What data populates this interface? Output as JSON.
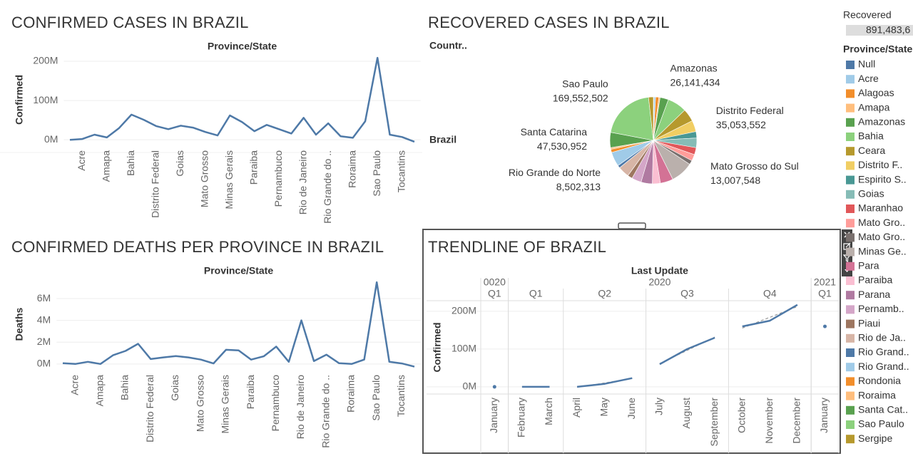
{
  "chart_data": [
    {
      "type": "line",
      "title": "CONFIRMED CASES IN BRAZIL",
      "x_label": "Province/State",
      "y_label": "Confirmed",
      "categories": [
        null,
        "Acre",
        null,
        "Amapa",
        null,
        "Bahia",
        null,
        "Distrito Federal",
        null,
        "Goias",
        null,
        "Mato Grosso",
        null,
        "Minas Gerais",
        null,
        "Paraiba",
        null,
        "Pernambuco",
        null,
        "Rio de Janeiro",
        null,
        "Rio Grande do ..",
        null,
        "Roraima",
        null,
        "Sao Paulo",
        null,
        "Tocantins",
        null
      ],
      "values": [
        0,
        2000000,
        13000000,
        6000000,
        30000000,
        64000000,
        51000000,
        35000000,
        27000000,
        36000000,
        31000000,
        20000000,
        11000000,
        62000000,
        45000000,
        22000000,
        38000000,
        27000000,
        16000000,
        56000000,
        13000000,
        42000000,
        9000000,
        5000000,
        47000000,
        209000000,
        13000000,
        7000000,
        -5000000
      ],
      "color": "#4e79a7",
      "ylim": [
        -16000000,
        220000000
      ],
      "yticks": [
        {
          "value": 0,
          "label": "0M"
        },
        {
          "value": 100000000,
          "label": "100M"
        },
        {
          "value": 200000000,
          "label": "200M"
        }
      ],
      "grid": true
    },
    {
      "type": "pie",
      "title": "RECOVERED CASES IN BRAZIL",
      "column_header": "Countr..",
      "row_label": "Brazil",
      "legend_title": "Province/State",
      "categories": [
        "Null",
        "Acre",
        "Alagoas",
        "Amapa",
        "Amazonas",
        "Bahia",
        "Ceara",
        "Distrito F..",
        "Espirito S..",
        "Goias",
        "Maranhao",
        "Mato Gro..",
        "Mato Gro..",
        "Minas Ge..",
        "Para",
        "Paraiba",
        "Parana",
        "Pernamb..",
        "Piaui",
        "Rio de Ja..",
        "Rio Grand..",
        "Rio Grand..",
        "Rondonia",
        "Roraima",
        "Santa Cat..",
        "Sao Paulo",
        "Sergipe"
      ],
      "colors": [
        "#4e79a7",
        "#a0cbe8",
        "#f28e2b",
        "#ffbe7d",
        "#59a14f",
        "#8cd17d",
        "#b6992d",
        "#f1ce63",
        "#499894",
        "#86bcb6",
        "#e15759",
        "#ff9d9a",
        "#79706e",
        "#bab0ac",
        "#d37295",
        "#fabfd2",
        "#b07aa1",
        "#d4a6c8",
        "#9d7660",
        "#d7b5a6",
        "#4e79a7",
        "#a0cbe8",
        "#f28e2b",
        "#ffbe7d",
        "#59a14f",
        "#8cd17d",
        "#b6992d"
      ],
      "values": [
        2000000,
        5000000,
        10000000,
        4000000,
        26141434,
        60000000,
        40000000,
        35053552,
        20000000,
        30000000,
        22000000,
        20000000,
        13007548,
        70000000,
        40000000,
        25000000,
        35000000,
        30000000,
        15000000,
        35000000,
        8502313,
        45000000,
        10000000,
        5000000,
        47530952,
        169552502,
        15000000
      ],
      "labels": [
        null,
        null,
        null,
        null,
        {
          "name": "Amazonas",
          "value_label": "26,141,434"
        },
        null,
        null,
        {
          "name": "Distrito Federal",
          "value_label": "35,053,552"
        },
        null,
        null,
        null,
        null,
        {
          "name": "Mato Grosso do Sul",
          "value_label": "13,007,548"
        },
        null,
        null,
        null,
        null,
        null,
        null,
        null,
        {
          "name": "Rio Grande do Norte",
          "value_label": "8,502,313"
        },
        null,
        null,
        null,
        {
          "name": "Santa Catarina",
          "value_label": "47,530,952"
        },
        {
          "name": "Sao Paulo",
          "value_label": "169,552,502"
        },
        null
      ]
    },
    {
      "type": "line",
      "title": "CONFIRMED DEATHS PER PROVINCE IN BRAZIL",
      "x_label": "Province/State",
      "y_label": "Deaths",
      "categories": [
        null,
        "Acre",
        null,
        "Amapa",
        null,
        "Bahia",
        null,
        "Distrito Federal",
        null,
        "Goias",
        null,
        "Mato Grosso",
        null,
        "Minas Gerais",
        null,
        "Paraiba",
        null,
        "Pernambuco",
        null,
        "Rio de Janeiro",
        null,
        "Rio Grande do ..",
        null,
        "Roraima",
        null,
        "Sao Paulo",
        null,
        "Tocantins",
        null
      ],
      "values": [
        70000,
        0,
        200000,
        0,
        800000,
        1200000,
        1850000,
        450000,
        600000,
        720000,
        600000,
        400000,
        50000,
        1300000,
        1250000,
        400000,
        700000,
        1600000,
        200000,
        4000000,
        260000,
        850000,
        70000,
        0,
        400000,
        7500000,
        200000,
        50000,
        -250000
      ],
      "color": "#4e79a7",
      "ylim": [
        -600000,
        7900000
      ],
      "yticks": [
        {
          "value": 0,
          "label": "0M"
        },
        {
          "value": 2000000,
          "label": "2M"
        },
        {
          "value": 4000000,
          "label": "4M"
        },
        {
          "value": 6000000,
          "label": "6M"
        }
      ],
      "grid": true
    },
    {
      "type": "trendline",
      "title": "TRENDLINE OF BRAZIL",
      "x_label": "Last Update",
      "y_label": "Confirmed",
      "color": "#4e79a7",
      "years": [
        {
          "label": "0020",
          "quarters": [
            {
              "label": "Q1",
              "categories": [
                "January"
              ],
              "values": [
                0
              ]
            }
          ]
        },
        {
          "label": "2020",
          "quarters": [
            {
              "label": "Q1",
              "categories": [
                "February",
                "March"
              ],
              "values": [
                0,
                0
              ]
            },
            {
              "label": "Q2",
              "categories": [
                "April",
                "May",
                "June"
              ],
              "values": [
                0,
                8000000,
                23000000
              ]
            },
            {
              "label": "Q3",
              "categories": [
                "July",
                "August",
                "September"
              ],
              "values": [
                60000000,
                100000000,
                130000000
              ]
            },
            {
              "label": "Q4",
              "categories": [
                "October",
                "November",
                "December"
              ],
              "values": [
                160000000,
                175000000,
                217000000
              ]
            }
          ]
        },
        {
          "label": "2021",
          "quarters": [
            {
              "label": "Q1",
              "categories": [
                "January"
              ],
              "values": [
                160000000
              ]
            }
          ]
        }
      ],
      "ylim": [
        -19000000,
        228000000
      ],
      "yticks": [
        {
          "value": 0,
          "label": "0M"
        },
        {
          "value": 100000000,
          "label": "100M"
        },
        {
          "value": 200000000,
          "label": "200M"
        }
      ],
      "grid": true
    }
  ],
  "filter": {
    "title": "Recovered",
    "value": "891,483,6"
  }
}
